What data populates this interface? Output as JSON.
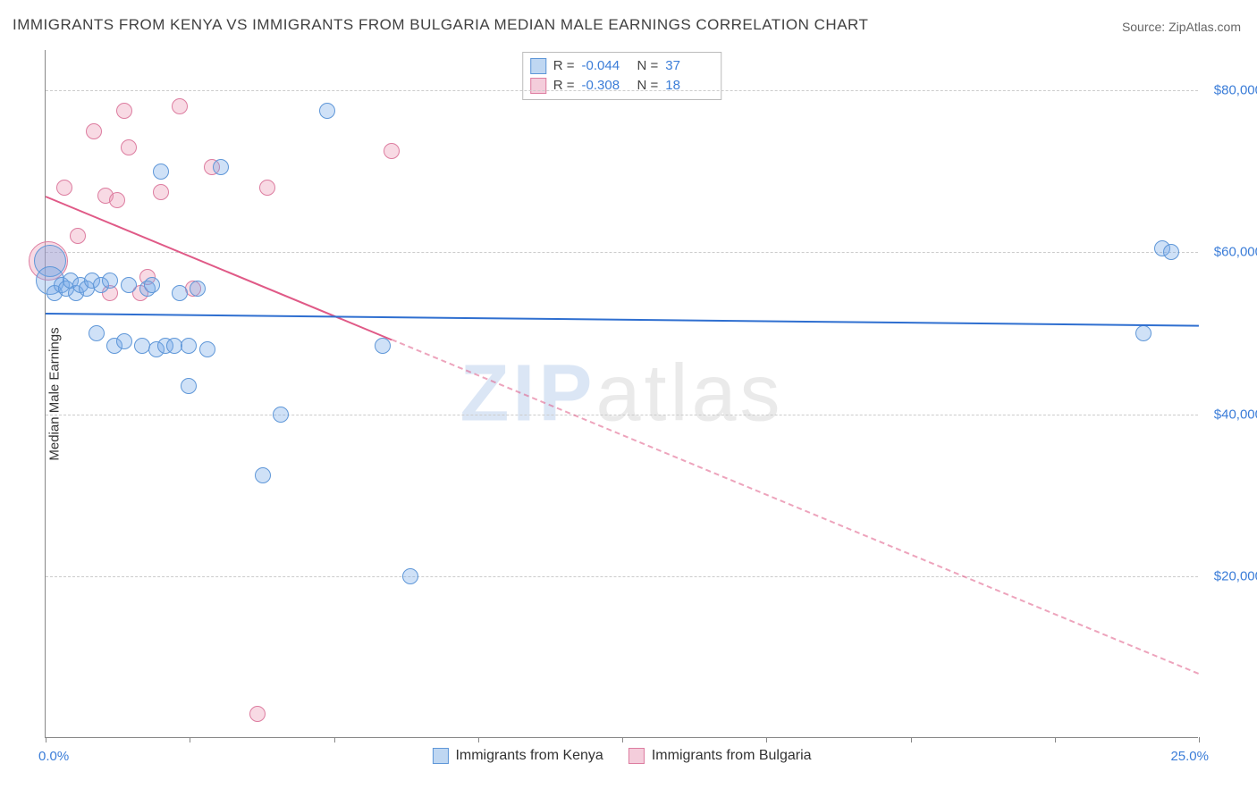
{
  "title": "IMMIGRANTS FROM KENYA VS IMMIGRANTS FROM BULGARIA MEDIAN MALE EARNINGS CORRELATION CHART",
  "source": "Source: ZipAtlas.com",
  "watermark_prefix": "ZIP",
  "watermark_suffix": "atlas",
  "y_axis_label": "Median Male Earnings",
  "x_min_label": "0.0%",
  "x_max_label": "25.0%",
  "chart": {
    "x_domain": [
      0,
      25
    ],
    "y_domain": [
      0,
      85000
    ],
    "y_gridlines": [
      20000,
      40000,
      60000,
      80000
    ],
    "y_tick_labels": [
      "$20,000",
      "$40,000",
      "$60,000",
      "$80,000"
    ],
    "x_ticks": [
      0,
      3.125,
      6.25,
      9.375,
      12.5,
      15.625,
      18.75,
      21.875,
      25
    ],
    "background_color": "#ffffff",
    "grid_color": "#cccccc",
    "axis_color": "#888888",
    "tick_label_color": "#3b7dd8"
  },
  "series": {
    "kenya": {
      "label": "Immigrants from Kenya",
      "color_fill": "rgba(117,169,232,0.35)",
      "color_stroke": "#5f97d8",
      "swatch_fill": "#bfd7f2",
      "swatch_border": "#5f97d8",
      "trend_color": "#2f6fd0",
      "trend_width": 2.5,
      "trend_solid_until_x": 25,
      "trend_dash_to_x": 25,
      "trend_y_start": 52500,
      "trend_y_end": 51000,
      "R_label": "R =",
      "R": "-0.044",
      "N_label": "N =",
      "N": "37",
      "base_radius": 9,
      "points": [
        {
          "x": 0.1,
          "y": 59000,
          "r": 18
        },
        {
          "x": 0.1,
          "y": 56500,
          "r": 16
        },
        {
          "x": 0.2,
          "y": 55000
        },
        {
          "x": 0.35,
          "y": 56000
        },
        {
          "x": 0.45,
          "y": 55500
        },
        {
          "x": 0.55,
          "y": 56500
        },
        {
          "x": 0.65,
          "y": 55000
        },
        {
          "x": 0.75,
          "y": 56000
        },
        {
          "x": 0.9,
          "y": 55500
        },
        {
          "x": 1.0,
          "y": 56500
        },
        {
          "x": 1.1,
          "y": 50000
        },
        {
          "x": 1.2,
          "y": 56000
        },
        {
          "x": 1.4,
          "y": 56500
        },
        {
          "x": 1.5,
          "y": 48500
        },
        {
          "x": 1.7,
          "y": 49000
        },
        {
          "x": 1.8,
          "y": 56000
        },
        {
          "x": 2.1,
          "y": 48500
        },
        {
          "x": 2.2,
          "y": 55500
        },
        {
          "x": 2.3,
          "y": 56000
        },
        {
          "x": 2.4,
          "y": 48000
        },
        {
          "x": 2.5,
          "y": 70000
        },
        {
          "x": 2.6,
          "y": 48500
        },
        {
          "x": 2.8,
          "y": 48500
        },
        {
          "x": 2.9,
          "y": 55000
        },
        {
          "x": 3.1,
          "y": 48500
        },
        {
          "x": 3.1,
          "y": 43500
        },
        {
          "x": 3.3,
          "y": 55500
        },
        {
          "x": 3.5,
          "y": 48000
        },
        {
          "x": 3.8,
          "y": 70500
        },
        {
          "x": 4.7,
          "y": 32500
        },
        {
          "x": 5.1,
          "y": 40000
        },
        {
          "x": 6.1,
          "y": 77500
        },
        {
          "x": 7.3,
          "y": 48500
        },
        {
          "x": 7.9,
          "y": 20000
        },
        {
          "x": 23.8,
          "y": 50000
        },
        {
          "x": 24.2,
          "y": 60500
        },
        {
          "x": 24.4,
          "y": 60000
        }
      ]
    },
    "bulgaria": {
      "label": "Immigrants from Bulgaria",
      "color_fill": "rgba(236,149,178,0.35)",
      "color_stroke": "#dd7da0",
      "swatch_fill": "#f4cddb",
      "swatch_border": "#dd7da0",
      "trend_color": "#e05a87",
      "trend_width": 2.5,
      "trend_solid_until_x": 7.5,
      "trend_dash_to_x": 25,
      "trend_y_start": 67000,
      "trend_y_end": 8000,
      "R_label": "R =",
      "R": "-0.308",
      "N_label": "N =",
      "N": "18",
      "base_radius": 9,
      "points": [
        {
          "x": 0.05,
          "y": 59000,
          "r": 22
        },
        {
          "x": 0.4,
          "y": 68000
        },
        {
          "x": 0.7,
          "y": 62000
        },
        {
          "x": 1.05,
          "y": 75000
        },
        {
          "x": 1.3,
          "y": 67000
        },
        {
          "x": 1.4,
          "y": 55000
        },
        {
          "x": 1.55,
          "y": 66500
        },
        {
          "x": 1.7,
          "y": 77500
        },
        {
          "x": 1.8,
          "y": 73000
        },
        {
          "x": 2.05,
          "y": 55000
        },
        {
          "x": 2.2,
          "y": 57000
        },
        {
          "x": 2.5,
          "y": 67500
        },
        {
          "x": 2.9,
          "y": 78000
        },
        {
          "x": 3.2,
          "y": 55500
        },
        {
          "x": 3.6,
          "y": 70500
        },
        {
          "x": 4.6,
          "y": 3000
        },
        {
          "x": 4.8,
          "y": 68000
        },
        {
          "x": 7.5,
          "y": 72500
        }
      ]
    }
  },
  "bottom_legend": [
    "kenya",
    "bulgaria"
  ]
}
